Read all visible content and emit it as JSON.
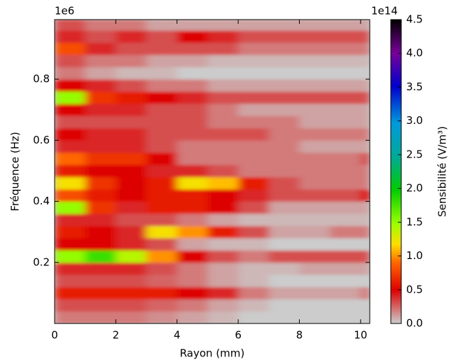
{
  "chart_data": {
    "type": "heatmap",
    "x_label": "Rayon (mm)",
    "y_label": "Fréquence (Hz)",
    "x_offset_label": "1e6",
    "colorbar_offset_label": "1e14",
    "colorbar_label": "Sensibilité (V/m³)",
    "xlim": [
      0,
      10.3
    ],
    "xticks": [
      0,
      2,
      4,
      6,
      8,
      10
    ],
    "ylim": [
      0,
      995000
    ],
    "yticks": [
      {
        "value": 200000,
        "label": "0.2"
      },
      {
        "value": 400000,
        "label": "0.4"
      },
      {
        "value": 600000,
        "label": "0.6"
      },
      {
        "value": 800000,
        "label": "0.8"
      }
    ],
    "clim": [
      0,
      450000000000000
    ],
    "cticks": [
      {
        "value": 0,
        "label": "0.0"
      },
      {
        "value": 50000000000000.0,
        "label": "0.5"
      },
      {
        "value": 100000000000000.0,
        "label": "1.0"
      },
      {
        "value": 150000000000000.0,
        "label": "1.5"
      },
      {
        "value": 200000000000000.0,
        "label": "2.0"
      },
      {
        "value": 250000000000000.0,
        "label": "2.5"
      },
      {
        "value": 300000000000000.0,
        "label": "3.0"
      },
      {
        "value": 350000000000000.0,
        "label": "3.5"
      },
      {
        "value": 400000000000000.0,
        "label": "4.0"
      },
      {
        "value": 450000000000000.0,
        "label": "4.5"
      }
    ],
    "xbins": [
      0,
      1,
      2,
      3,
      4,
      5,
      6,
      7,
      8,
      9,
      10,
      10.3
    ],
    "ybins": [
      0,
      40000,
      80000,
      120000,
      160000,
      200000,
      240000,
      280000,
      320000,
      360000,
      400000,
      440000,
      480000,
      520000,
      560000,
      600000,
      640000,
      680000,
      720000,
      760000,
      800000,
      840000,
      880000,
      920000,
      960000,
      995000
    ],
    "z": [
      [
        20000000000000.0,
        20000000000000.0,
        20000000000000.0,
        15000000000000.0,
        10000000000000.0,
        5000000000000.0,
        0,
        0,
        0,
        0,
        0
      ],
      [
        30000000000000.0,
        30000000000000.0,
        30000000000000.0,
        25000000000000.0,
        20000000000000.0,
        10000000000000.0,
        5000000000000.0,
        0,
        0,
        0,
        0
      ],
      [
        60000000000000.0,
        60000000000000.0,
        60000000000000.0,
        60000000000000.0,
        50000000000000.0,
        40000000000000.0,
        20000000000000.0,
        10000000000000.0,
        10000000000000.0,
        10000000000000.0,
        20000000000000.0
      ],
      [
        30000000000000.0,
        30000000000000.0,
        30000000000000.0,
        25000000000000.0,
        20000000000000.0,
        10000000000000.0,
        5000000000000.0,
        0,
        0,
        0,
        0
      ],
      [
        40000000000000.0,
        40000000000000.0,
        40000000000000.0,
        30000000000000.0,
        20000000000000.0,
        10000000000000.0,
        5000000000000.0,
        5000000000000.0,
        10000000000000.0,
        10000000000000.0,
        10000000000000.0
      ],
      [
        150000000000000.0,
        180000000000000.0,
        140000000000000.0,
        100000000000000.0,
        50000000000000.0,
        30000000000000.0,
        20000000000000.0,
        30000000000000.0,
        30000000000000.0,
        30000000000000.0,
        30000000000000.0
      ],
      [
        50000000000000.0,
        50000000000000.0,
        40000000000000.0,
        30000000000000.0,
        10000000000000.0,
        5000000000000.0,
        5000000000000.0,
        0,
        0,
        0,
        0
      ],
      [
        60000000000000.0,
        50000000000000.0,
        40000000000000.0,
        120000000000000.0,
        100000000000000.0,
        60000000000000.0,
        30000000000000.0,
        10000000000000.0,
        10000000000000.0,
        20000000000000.0,
        20000000000000.0
      ],
      [
        40000000000000.0,
        40000000000000.0,
        30000000000000.0,
        30000000000000.0,
        20000000000000.0,
        10000000000000.0,
        5000000000000.0,
        5000000000000.0,
        5000000000000.0,
        5000000000000.0,
        5000000000000.0
      ],
      [
        150000000000000.0,
        70000000000000.0,
        40000000000000.0,
        60000000000000.0,
        60000000000000.0,
        50000000000000.0,
        30000000000000.0,
        10000000000000.0,
        10000000000000.0,
        10000000000000.0,
        10000000000000.0
      ],
      [
        80000000000000.0,
        60000000000000.0,
        50000000000000.0,
        60000000000000.0,
        60000000000000.0,
        50000000000000.0,
        40000000000000.0,
        30000000000000.0,
        30000000000000.0,
        30000000000000.0,
        50000000000000.0
      ],
      [
        120000000000000.0,
        70000000000000.0,
        50000000000000.0,
        60000000000000.0,
        120000000000000.0,
        110000000000000.0,
        60000000000000.0,
        30000000000000.0,
        20000000000000.0,
        20000000000000.0,
        20000000000000.0
      ],
      [
        60000000000000.0,
        50000000000000.0,
        50000000000000.0,
        40000000000000.0,
        40000000000000.0,
        30000000000000.0,
        20000000000000.0,
        20000000000000.0,
        20000000000000.0,
        20000000000000.0,
        20000000000000.0
      ],
      [
        90000000000000.0,
        70000000000000.0,
        70000000000000.0,
        50000000000000.0,
        20000000000000.0,
        20000000000000.0,
        20000000000000.0,
        20000000000000.0,
        20000000000000.0,
        20000000000000.0,
        30000000000000.0
      ],
      [
        40000000000000.0,
        40000000000000.0,
        40000000000000.0,
        30000000000000.0,
        20000000000000.0,
        20000000000000.0,
        20000000000000.0,
        20000000000000.0,
        10000000000000.0,
        10000000000000.0,
        10000000000000.0
      ],
      [
        50000000000000.0,
        40000000000000.0,
        40000000000000.0,
        30000000000000.0,
        30000000000000.0,
        30000000000000.0,
        30000000000000.0,
        20000000000000.0,
        20000000000000.0,
        20000000000000.0,
        20000000000000.0
      ],
      [
        30000000000000.0,
        30000000000000.0,
        30000000000000.0,
        30000000000000.0,
        30000000000000.0,
        20000000000000.0,
        20000000000000.0,
        20000000000000.0,
        10000000000000.0,
        10000000000000.0,
        10000000000000.0
      ],
      [
        50000000000000.0,
        40000000000000.0,
        40000000000000.0,
        30000000000000.0,
        30000000000000.0,
        20000000000000.0,
        10000000000000.0,
        10000000000000.0,
        10000000000000.0,
        10000000000000.0,
        10000000000000.0
      ],
      [
        150000000000000.0,
        70000000000000.0,
        60000000000000.0,
        50000000000000.0,
        40000000000000.0,
        30000000000000.0,
        30000000000000.0,
        30000000000000.0,
        30000000000000.0,
        30000000000000.0,
        30000000000000.0
      ],
      [
        50000000000000.0,
        40000000000000.0,
        30000000000000.0,
        20000000000000.0,
        20000000000000.0,
        10000000000000.0,
        10000000000000.0,
        10000000000000.0,
        10000000000000.0,
        10000000000000.0,
        10000000000000.0
      ],
      [
        20000000000000.0,
        10000000000000.0,
        5000000000000.0,
        5000000000000.0,
        0,
        0,
        0,
        0,
        0,
        0,
        0
      ],
      [
        30000000000000.0,
        20000000000000.0,
        20000000000000.0,
        10000000000000.0,
        10000000000000.0,
        5000000000000.0,
        5000000000000.0,
        5000000000000.0,
        5000000000000.0,
        5000000000000.0,
        5000000000000.0
      ],
      [
        80000000000000.0,
        40000000000000.0,
        30000000000000.0,
        30000000000000.0,
        30000000000000.0,
        30000000000000.0,
        20000000000000.0,
        20000000000000.0,
        20000000000000.0,
        20000000000000.0,
        20000000000000.0
      ],
      [
        40000000000000.0,
        30000000000000.0,
        40000000000000.0,
        30000000000000.0,
        50000000000000.0,
        40000000000000.0,
        30000000000000.0,
        30000000000000.0,
        30000000000000.0,
        30000000000000.0,
        30000000000000.0
      ],
      [
        30000000000000.0,
        20000000000000.0,
        20000000000000.0,
        10000000000000.0,
        10000000000000.0,
        10000000000000.0,
        10000000000000.0,
        10000000000000.0,
        10000000000000.0,
        10000000000000.0,
        10000000000000.0
      ]
    ]
  }
}
